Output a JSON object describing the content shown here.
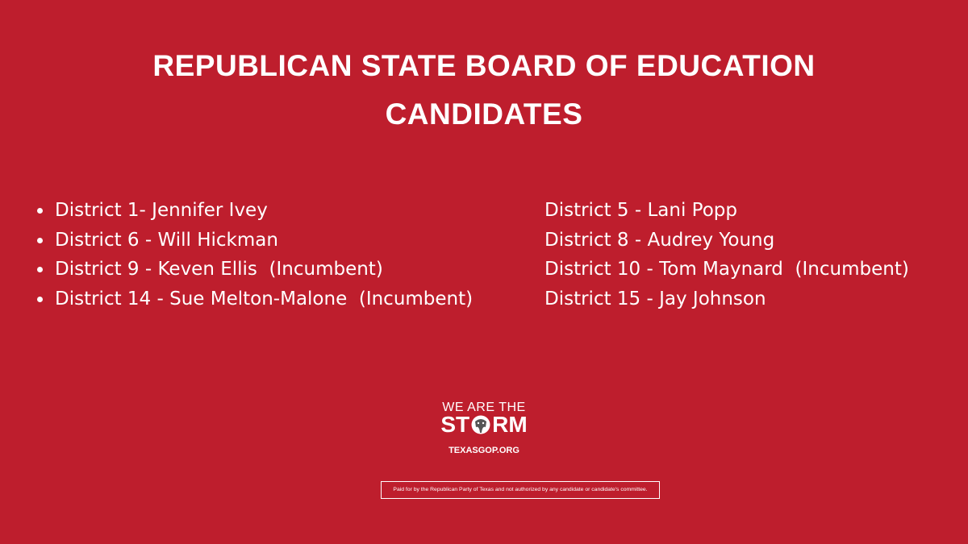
{
  "title": "REPUBLICAN STATE BOARD OF EDUCATION CANDIDATES",
  "left_list": [
    "District 1- Jennifer Ivey",
    "District 6 - Will Hickman",
    "District 9 - Keven Ellis  (Incumbent)",
    "District 14 - Sue Melton-Malone  (Incumbent)"
  ],
  "right_list": [
    "District 5 - Lani Popp",
    "District 8 - Audrey Young",
    "District 10 - Tom Maynard  (Incumbent)",
    "District 15 - Jay Johnson"
  ],
  "logo": {
    "top": "WE ARE THE",
    "word_start": "ST",
    "word_end": "RM"
  },
  "website": "TEXASGOP.ORG",
  "disclaimer": "Paid for by the Republican Party of Texas and not authorized by any candidate or candidate's committee."
}
